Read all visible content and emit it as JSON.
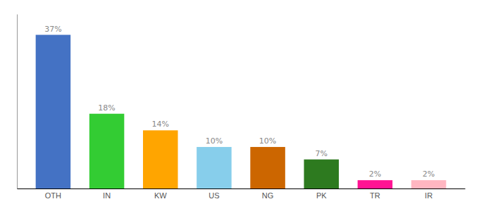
{
  "chart_data": {
    "type": "bar",
    "categories": [
      "OTH",
      "IN",
      "KW",
      "US",
      "NG",
      "PK",
      "TR",
      "IR"
    ],
    "values": [
      37,
      18,
      14,
      10,
      10,
      7,
      2,
      2
    ],
    "value_labels": [
      "37%",
      "18%",
      "14%",
      "10%",
      "10%",
      "7%",
      "2%",
      "2%"
    ],
    "colors": [
      "#4472C4",
      "#33CC33",
      "#FFA500",
      "#87CEEB",
      "#CC6600",
      "#2D7A1F",
      "#FF1493",
      "#FFB6C1"
    ],
    "ylim": [
      0,
      42
    ],
    "data_labels": true,
    "tick_labels": "x",
    "grid": false
  }
}
